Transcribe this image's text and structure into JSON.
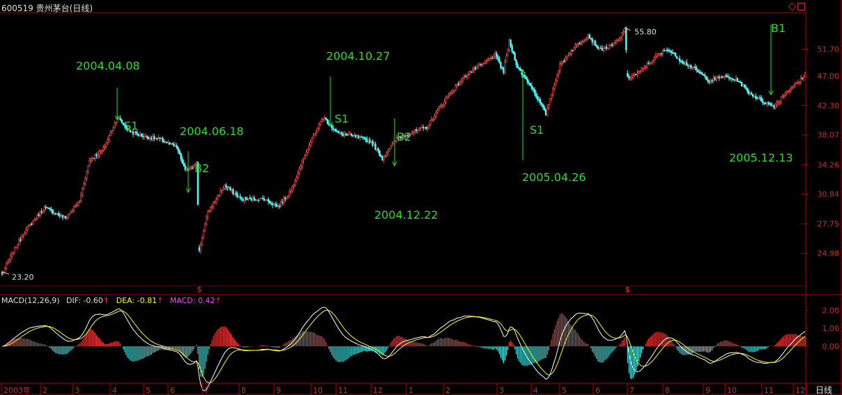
{
  "header": {
    "code": "600519",
    "name": "贵州茅台(日线)"
  },
  "window_icons": [
    "diamond-icon",
    "restore-icon"
  ],
  "colors": {
    "up": "#ff4a4a",
    "down": "#54ffff",
    "frame": "#b00000",
    "label": "#22e022",
    "dif": "#ffffff",
    "dea": "#ffff00",
    "macd_label": "#ff40ff"
  },
  "macd": {
    "label": "MACD(12,26,9)",
    "dif_label": "DIF:",
    "dif_value": "-0.60",
    "dea_label": "DEA:",
    "dea_value": "-0.81",
    "macd_label": "MACD:",
    "macd_value": "0.42",
    "up_arrow": "↑"
  },
  "ex_rights_marks": [
    "$",
    "$"
  ],
  "period_label": "日线",
  "chart_data": [
    {
      "type": "candlestick",
      "title": "600519 贵州茅台(日线)",
      "y_ticks": [
        "51.70",
        "47.00",
        "42.30",
        "38.07",
        "34.26",
        "30.84",
        "27.75",
        "24.98"
      ],
      "y_ticks_values": [
        51.7,
        47.0,
        42.3,
        38.07,
        34.26,
        30.84,
        27.75,
        24.98
      ],
      "x_ticks": [
        "2003年",
        "2",
        "3",
        "4",
        "5",
        "6",
        "7",
        "8",
        "9",
        "10",
        "11",
        "12",
        "1",
        "2",
        "3",
        "4",
        "5",
        "6",
        "7",
        "8",
        "9",
        "10",
        "11",
        "12",
        "1"
      ],
      "ylim": [
        22.6,
        58.0
      ],
      "scale": "log",
      "min_label": "23.20",
      "max_label": "55.80",
      "anchors": [
        [
          0,
          23.2
        ],
        [
          15,
          26.8
        ],
        [
          30,
          29.4
        ],
        [
          45,
          28.3
        ],
        [
          55,
          30.1
        ],
        [
          62,
          34.8
        ],
        [
          72,
          36.2
        ],
        [
          82,
          40.5
        ],
        [
          90,
          38.6
        ],
        [
          102,
          37.8
        ],
        [
          112,
          37.5
        ],
        [
          124,
          36.4
        ],
        [
          130,
          33.5
        ],
        [
          138,
          34.4
        ],
        [
          140,
          25.2
        ],
        [
          146,
          28.9
        ],
        [
          158,
          31.8
        ],
        [
          170,
          30.3
        ],
        [
          186,
          30.3
        ],
        [
          196,
          29.5
        ],
        [
          205,
          31.2
        ],
        [
          215,
          35.5
        ],
        [
          228,
          40.6
        ],
        [
          238,
          38.3
        ],
        [
          250,
          37.9
        ],
        [
          262,
          37.2
        ],
        [
          270,
          35.0
        ],
        [
          280,
          37.6
        ],
        [
          292,
          38.5
        ],
        [
          302,
          39.2
        ],
        [
          316,
          43.6
        ],
        [
          330,
          47.3
        ],
        [
          342,
          49.2
        ],
        [
          350,
          50.6
        ],
        [
          356,
          47.7
        ],
        [
          360,
          53.1
        ],
        [
          366,
          48.4
        ],
        [
          376,
          45.1
        ],
        [
          386,
          41.0
        ],
        [
          396,
          48.8
        ],
        [
          406,
          52.0
        ],
        [
          416,
          54.3
        ],
        [
          424,
          51.6
        ],
        [
          432,
          52.2
        ],
        [
          438,
          53.5
        ],
        [
          442,
          55.8
        ],
        [
          444,
          46.6
        ],
        [
          452,
          47.5
        ],
        [
          462,
          49.8
        ],
        [
          472,
          51.8
        ],
        [
          482,
          49.6
        ],
        [
          492,
          48.1
        ],
        [
          502,
          46.2
        ],
        [
          512,
          46.9
        ],
        [
          522,
          46.3
        ],
        [
          530,
          44.3
        ],
        [
          540,
          42.9
        ],
        [
          548,
          42.2
        ],
        [
          556,
          44.2
        ],
        [
          566,
          46.1
        ],
        [
          570,
          47.3
        ]
      ],
      "annotations": [
        {
          "text": "2004.04.08",
          "kind": "date"
        },
        {
          "text": "S1",
          "kind": "signal"
        },
        {
          "text": "2004.06.18",
          "kind": "date"
        },
        {
          "text": "B2",
          "kind": "signal"
        },
        {
          "text": "2004.10.27",
          "kind": "date"
        },
        {
          "text": "S1",
          "kind": "signal"
        },
        {
          "text": "B2",
          "kind": "signal"
        },
        {
          "text": "2004.12.22",
          "kind": "date"
        },
        {
          "text": "S1",
          "kind": "signal"
        },
        {
          "text": "2005.04.26",
          "kind": "date"
        },
        {
          "text": "B1",
          "kind": "signal"
        },
        {
          "text": "2005.12.13",
          "kind": "date"
        }
      ]
    },
    {
      "type": "macd",
      "title": "MACD(12,26,9)",
      "y_ticks": [
        "2.00",
        "1.00",
        "0.00"
      ],
      "y_ticks_values": [
        2.0,
        1.0,
        0.0
      ],
      "ylim": [
        -1.9,
        2.6
      ],
      "last": {
        "dif": -0.6,
        "dea": -0.81,
        "macd": 0.42
      }
    }
  ]
}
